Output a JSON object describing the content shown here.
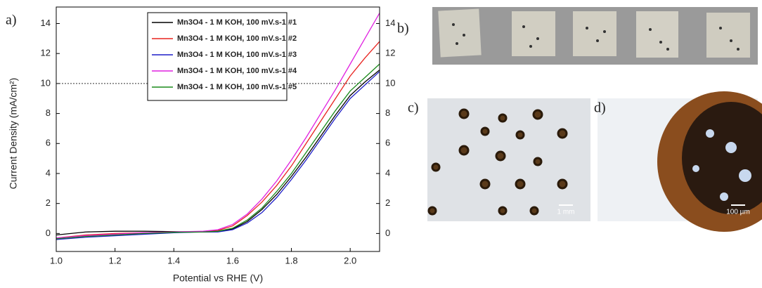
{
  "chart_data": {
    "type": "line",
    "xlabel": "Potential vs RHE (V)",
    "ylabel": "Current Density (mA/cm²)",
    "panel_labels": [
      "a)",
      "b)",
      "c)",
      "d)"
    ],
    "scale_bars": [
      "1 mm",
      "100 µm"
    ],
    "x": [
      1.0,
      1.1,
      1.2,
      1.3,
      1.4,
      1.5,
      1.55,
      1.6,
      1.65,
      1.7,
      1.75,
      1.8,
      1.85,
      1.9,
      1.95,
      2.0,
      2.05,
      2.1
    ],
    "series": [
      {
        "name": "Mn3O4 - 1 M KOH, 100 mV.s-1 #1",
        "color": "#000000",
        "values": [
          -0.1,
          0.1,
          0.15,
          0.15,
          0.12,
          0.1,
          0.12,
          0.3,
          0.8,
          1.6,
          2.6,
          3.8,
          5.1,
          6.5,
          7.9,
          9.2,
          10.1,
          10.9
        ]
      },
      {
        "name": "Mn3O4 - 1 M KOH, 100 mV.s-1 #2",
        "color": "#e8231f",
        "values": [
          -0.3,
          -0.1,
          0.0,
          0.05,
          0.1,
          0.12,
          0.2,
          0.5,
          1.2,
          2.1,
          3.2,
          4.5,
          6.0,
          7.5,
          9.0,
          10.5,
          11.7,
          12.8
        ]
      },
      {
        "name": "Mn3O4 - 1 M KOH, 100 mV.s-1 #3",
        "color": "#1f1fc8",
        "values": [
          -0.4,
          -0.25,
          -0.15,
          -0.05,
          0.05,
          0.1,
          0.1,
          0.25,
          0.7,
          1.4,
          2.4,
          3.6,
          4.9,
          6.3,
          7.7,
          9.0,
          9.9,
          10.8
        ]
      },
      {
        "name": "Mn3O4 - 1 M KOH, 100 mV.s-1 #4",
        "color": "#e020e0",
        "values": [
          -0.3,
          -0.15,
          -0.05,
          0.05,
          0.1,
          0.15,
          0.25,
          0.6,
          1.3,
          2.3,
          3.5,
          4.9,
          6.4,
          8.0,
          9.6,
          11.3,
          13.0,
          14.7
        ]
      },
      {
        "name": "Mn3O4 - 1 M KOH, 100 mV.s-1 #5",
        "color": "#1a8a1a",
        "values": [
          -0.35,
          -0.2,
          -0.1,
          0.0,
          0.08,
          0.1,
          0.15,
          0.35,
          0.9,
          1.7,
          2.8,
          4.0,
          5.4,
          6.8,
          8.2,
          9.5,
          10.4,
          11.3
        ]
      }
    ],
    "xlim": [
      1.0,
      2.1
    ],
    "ylim": [
      -1.2,
      15.1
    ],
    "xticks": [
      {
        "value": 1.0,
        "label": "1.0"
      },
      1.2,
      1.4,
      1.6,
      1.8,
      {
        "value": 2.0,
        "label": "2.0"
      }
    ],
    "yticks": [
      0,
      2,
      4,
      6,
      8,
      10,
      12,
      14
    ],
    "y2lim": [
      -1.2,
      15.1
    ],
    "y2ticks": [
      0,
      2,
      4,
      6,
      8,
      10,
      12,
      14
    ],
    "hline": 10,
    "legend": "upper right"
  }
}
